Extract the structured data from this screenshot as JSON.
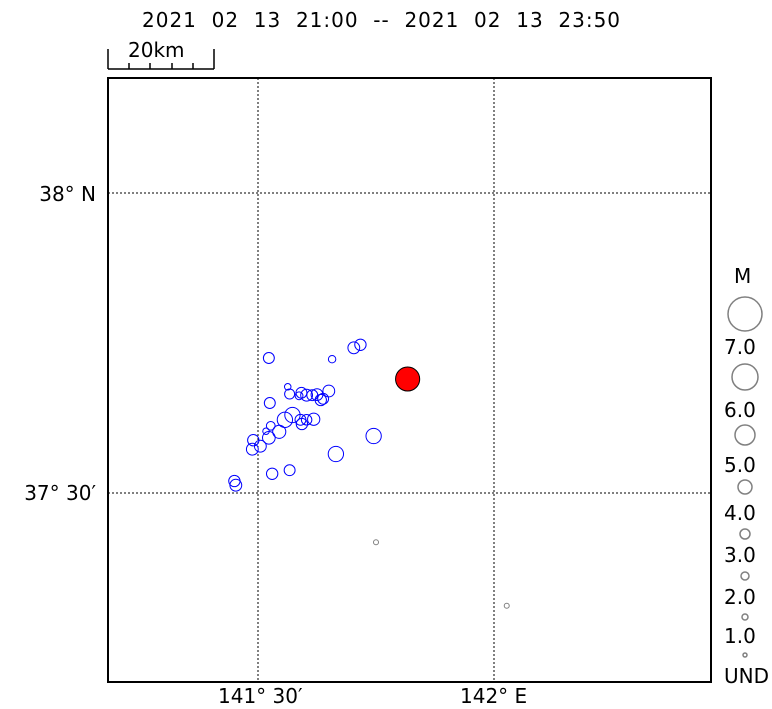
{
  "title": "2021  02  13  21:00  --  2021  02  13  23:50",
  "scale_bar": {
    "label": "20km"
  },
  "lat_labels": [
    "38° N",
    "37° 30′"
  ],
  "lon_labels": [
    "141° 30′",
    "142° E"
  ],
  "legend": {
    "title": "M",
    "labels": [
      "7.0",
      "6.0",
      "5.0",
      "4.0",
      "3.0",
      "2.0",
      "1.0",
      "UND"
    ]
  },
  "colors": {
    "event_outline": "#0000ff",
    "main_event_fill": "#ff0000",
    "und_outline": "#808080",
    "legend_outline": "#808080"
  },
  "chart_data": {
    "type": "scatter",
    "title": "2021  02  13  21:00  --  2021  02  13  23:50",
    "x_axis": {
      "ticks": [
        "141° 30′",
        "142° E"
      ]
    },
    "y_axis": {
      "ticks": [
        "38° N",
        "37° 30′"
      ]
    },
    "grid": true,
    "series": [
      {
        "color": "#0000ff",
        "points": [
          {
            "lon": 141.523,
            "lat": 37.725,
            "mag": 4.3
          },
          {
            "lon": 141.717,
            "lat": 37.747,
            "mag": 4.4
          },
          {
            "lon": 141.703,
            "lat": 37.742,
            "mag": 4.5
          },
          {
            "lon": 141.657,
            "lat": 37.723,
            "mag": 3.5
          },
          {
            "lon": 141.563,
            "lat": 37.677,
            "mag": 3.3
          },
          {
            "lon": 141.567,
            "lat": 37.665,
            "mag": 4.1
          },
          {
            "lon": 141.592,
            "lat": 37.667,
            "mag": 4.3
          },
          {
            "lon": 141.587,
            "lat": 37.662,
            "mag": 3.6
          },
          {
            "lon": 141.615,
            "lat": 37.663,
            "mag": 4.3
          },
          {
            "lon": 141.603,
            "lat": 37.663,
            "mag": 4.5
          },
          {
            "lon": 141.65,
            "lat": 37.67,
            "mag": 4.5
          },
          {
            "lon": 141.638,
            "lat": 37.657,
            "mag": 4.3
          },
          {
            "lon": 141.633,
            "lat": 37.655,
            "mag": 4.4
          },
          {
            "lon": 141.625,
            "lat": 37.664,
            "mag": 4.5
          },
          {
            "lon": 141.525,
            "lat": 37.65,
            "mag": 4.3
          },
          {
            "lon": 141.573,
            "lat": 37.63,
            "mag": 5.3
          },
          {
            "lon": 141.59,
            "lat": 37.622,
            "mag": 4.3
          },
          {
            "lon": 141.603,
            "lat": 37.622,
            "mag": 4.2
          },
          {
            "lon": 141.593,
            "lat": 37.615,
            "mag": 4.4
          },
          {
            "lon": 141.557,
            "lat": 37.622,
            "mag": 5.3
          },
          {
            "lon": 141.618,
            "lat": 37.623,
            "mag": 4.6
          },
          {
            "lon": 141.527,
            "lat": 37.612,
            "mag": 3.8
          },
          {
            "lon": 141.545,
            "lat": 37.602,
            "mag": 4.8
          },
          {
            "lon": 141.517,
            "lat": 37.603,
            "mag": 3.3
          },
          {
            "lon": 141.523,
            "lat": 37.592,
            "mag": 4.7
          },
          {
            "lon": 141.49,
            "lat": 37.588,
            "mag": 4.4
          },
          {
            "lon": 141.505,
            "lat": 37.578,
            "mag": 4.5
          },
          {
            "lon": 141.488,
            "lat": 37.573,
            "mag": 4.5
          },
          {
            "lon": 141.665,
            "lat": 37.565,
            "mag": 5.3
          },
          {
            "lon": 141.745,
            "lat": 37.595,
            "mag": 5.3
          },
          {
            "lon": 141.53,
            "lat": 37.532,
            "mag": 4.4
          },
          {
            "lon": 141.567,
            "lat": 37.538,
            "mag": 4.3
          },
          {
            "lon": 141.45,
            "lat": 37.52,
            "mag": 4.4
          },
          {
            "lon": 141.453,
            "lat": 37.513,
            "mag": 4.5
          }
        ]
      },
      {
        "color": "#ff0000",
        "points": [
          {
            "lon": 141.817,
            "lat": 37.69,
            "mag": 7.3
          }
        ]
      },
      {
        "color": "#808080",
        "points": [
          {
            "lon": 141.75,
            "lat": 37.418,
            "mag": "UND"
          },
          {
            "lon": 142.027,
            "lat": 37.312,
            "mag": "UND"
          }
        ]
      }
    ]
  }
}
